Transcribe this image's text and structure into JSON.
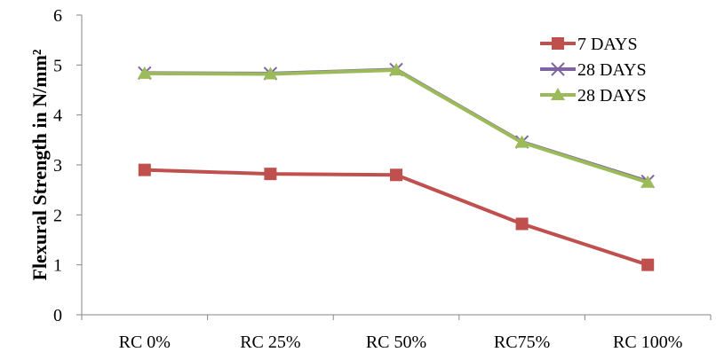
{
  "chart_data": {
    "type": "line",
    "categories": [
      "RC 0%",
      "RC 25%",
      "RC 50%",
      "RC75%",
      "RC 100%"
    ],
    "series": [
      {
        "name": "7 DAYS",
        "values": [
          2.9,
          2.82,
          2.8,
          1.82,
          1.0
        ],
        "color": "#C0504D",
        "marker": "square"
      },
      {
        "name": "28  DAYS",
        "values": [
          4.84,
          4.83,
          4.91,
          3.46,
          2.67
        ],
        "color": "#8064A2",
        "marker": "x"
      },
      {
        "name": "28  DAYS",
        "values": [
          4.83,
          4.82,
          4.9,
          3.45,
          2.65
        ],
        "color": "#9BBB59",
        "marker": "triangle"
      }
    ],
    "title": "",
    "xlabel": "",
    "ylabel": "Flexural Strength in N/mm²",
    "ylim": [
      0,
      6
    ],
    "yticks": [
      "0",
      "1",
      "2",
      "3",
      "4",
      "5",
      "6"
    ],
    "grid": false,
    "legend": "top-right"
  }
}
